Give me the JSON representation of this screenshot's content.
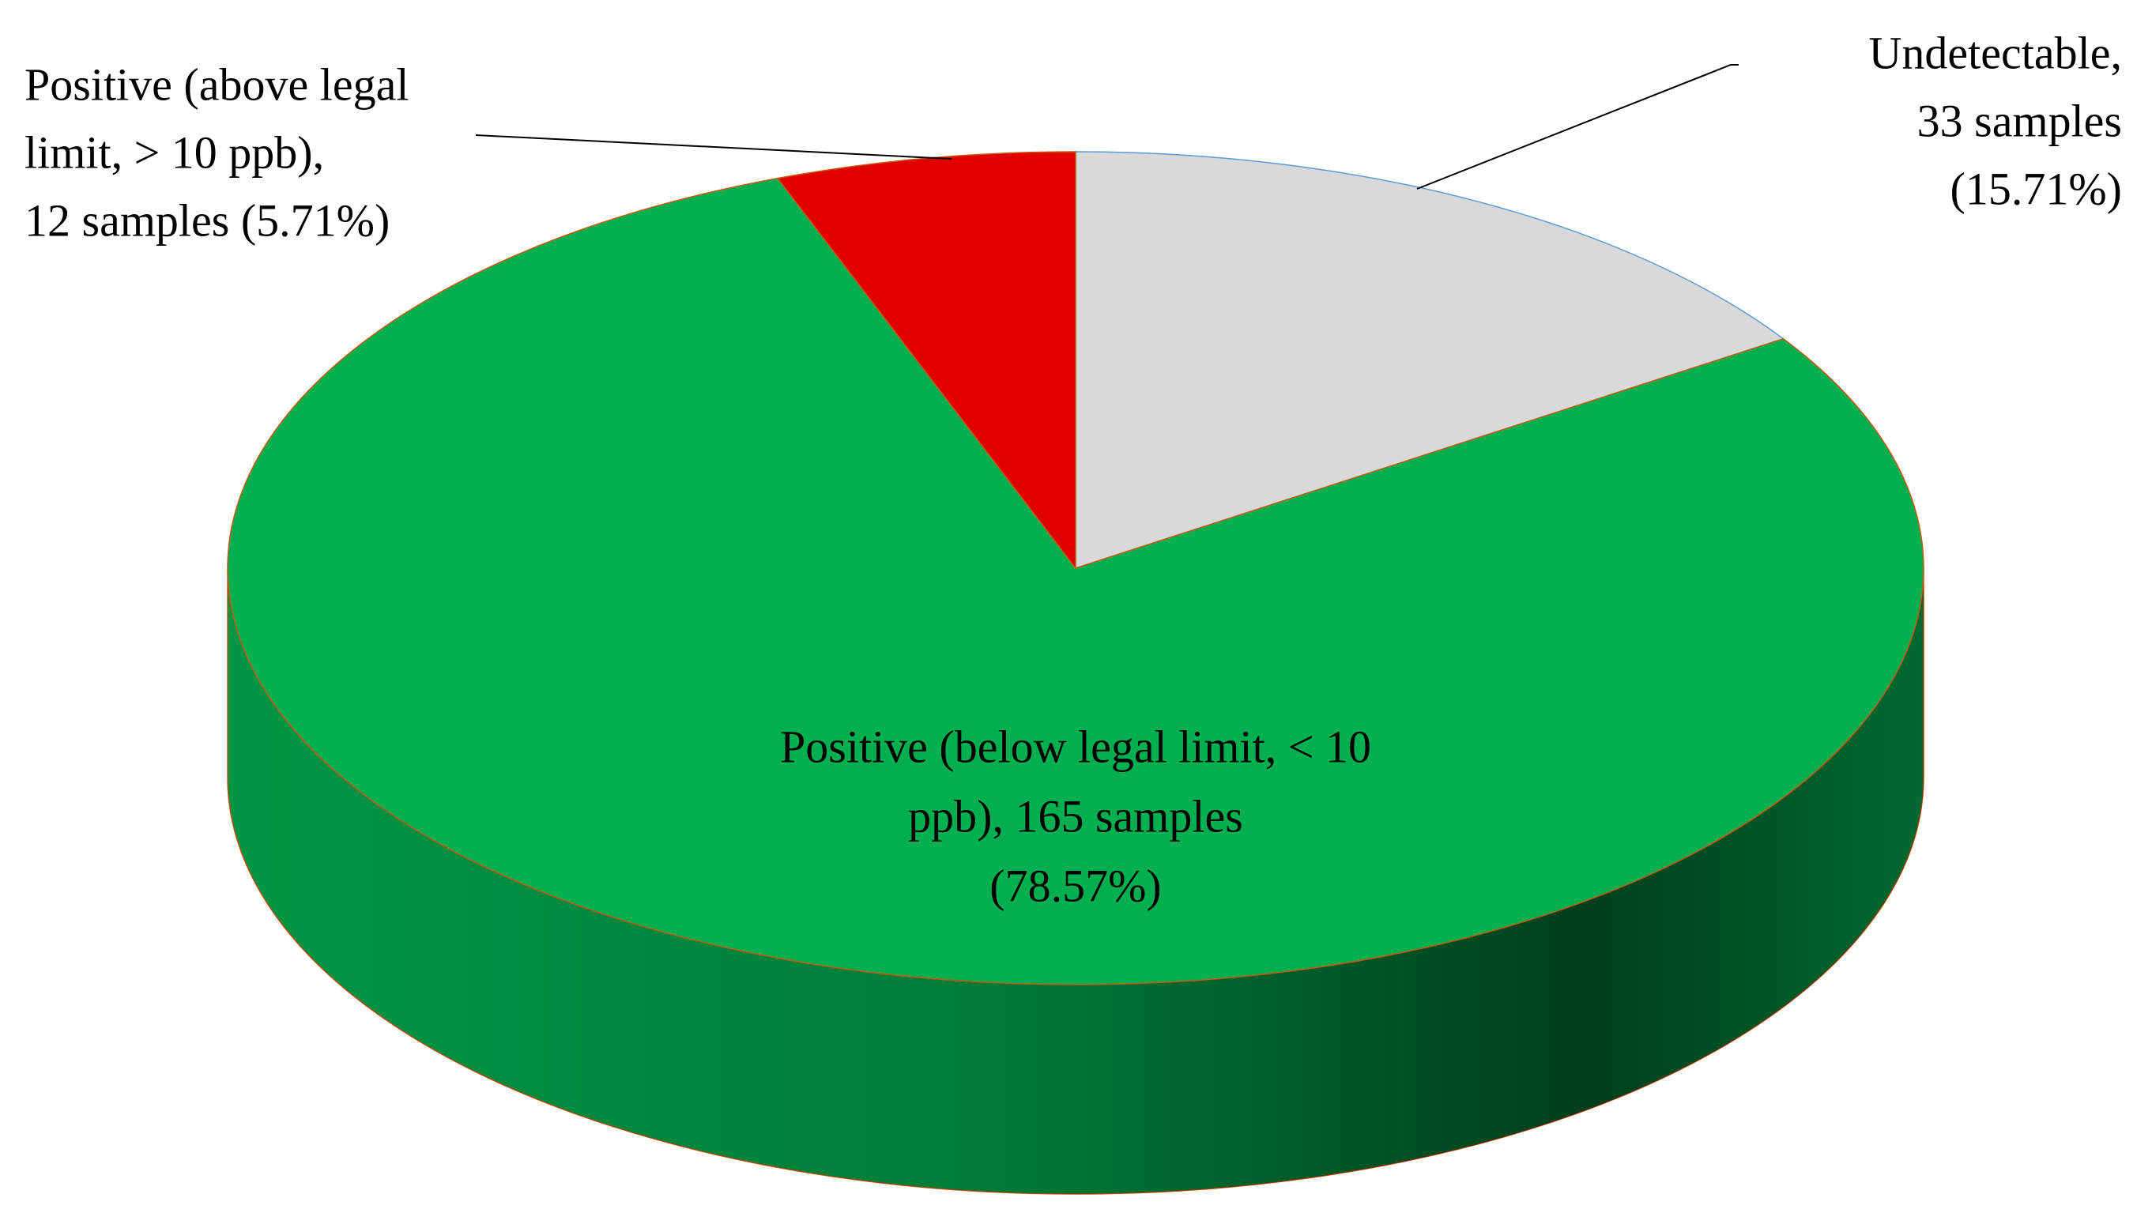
{
  "chart_data": {
    "type": "pie3d",
    "values": [
      33,
      165,
      12
    ],
    "value_labels": [
      [
        "Undetectable,",
        "33 samples",
        "(15.71%)"
      ],
      [
        "Positive (below legal limit, < 10",
        "ppb), 165 samples",
        "(78.57%)"
      ],
      [
        "Positive (above legal",
        "limit, > 10  ppb),",
        "12 samples (5.71%)"
      ]
    ],
    "colors": [
      "#d9d9d9",
      "#00b050",
      "#e00000"
    ]
  }
}
